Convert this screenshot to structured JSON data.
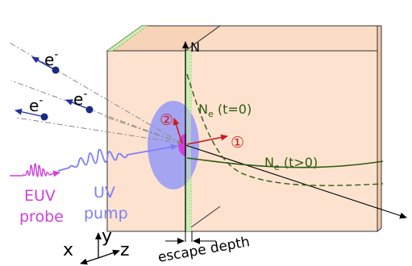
{
  "labels": {
    "electron": "e",
    "electron_sup": "-",
    "euv_line1": "EUV",
    "euv_line2": "probe",
    "uv_line1": "UV",
    "uv_line2": "pump",
    "axis_n": "N",
    "ne_t0_main": "N",
    "ne_t0_sub": "e",
    "ne_t0_rest": " (t=0)",
    "ne_t_main": "N",
    "ne_t_sub": "e",
    "ne_t_rest": " (t>0)",
    "escape_depth": "escape depth",
    "marker_1": "①",
    "marker_2": "②",
    "axis_x": "x",
    "axis_y": "y",
    "axis_z": "z"
  },
  "colors": {
    "slab_fill": "#fde3cf",
    "slab_side": "#f7d3b8",
    "surface_layer": "#c9efb1",
    "green_curve": "#2f5a12",
    "electron_dot": "#1a2a80",
    "electron_arrow": "#2030a0",
    "euv": "#d040d8",
    "uv": "#7f7ff5",
    "uv_spot": "#9a9cf4",
    "red_arrow": "#cc1b1b"
  }
}
